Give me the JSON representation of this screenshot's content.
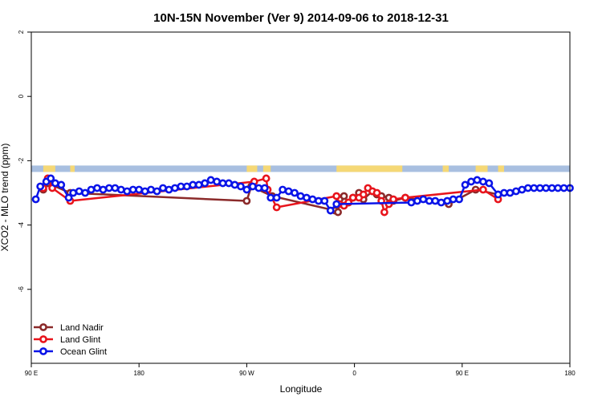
{
  "chart_data": {
    "type": "line",
    "title": "10N-15N November (Ver 9)   2014-09-06 to 2018-12-31",
    "xlabel": "Longitude",
    "ylabel": "XCO2 - MLO trend (ppm)",
    "xlim": [
      0,
      360
    ],
    "ylim": [
      -8.3,
      2.0
    ],
    "yticks": [
      {
        "value": 2,
        "label": "2"
      },
      {
        "value": 0,
        "label": "0"
      },
      {
        "value": -2,
        "label": "-2"
      },
      {
        "value": -4,
        "label": "-4"
      },
      {
        "value": -6,
        "label": "-6"
      }
    ],
    "xticks": [
      {
        "value": 0,
        "label": "90 E"
      },
      {
        "value": 72,
        "label": "180"
      },
      {
        "value": 144,
        "label": "90 W"
      },
      {
        "value": 216,
        "label": "0"
      },
      {
        "value": 288,
        "label": "90 E"
      },
      {
        "value": 360,
        "label": "180"
      }
    ],
    "legend_position": "bottom-left",
    "map_strip": {
      "y_range": [
        -2.35,
        -2.15
      ],
      "ocean_color": "#a8bfe0",
      "land_color": "#f5d876",
      "land_spans": [
        [
          8,
          16
        ],
        [
          26,
          29
        ],
        [
          144,
          151
        ],
        [
          155,
          160
        ],
        [
          204,
          248
        ],
        [
          275,
          279
        ],
        [
          297,
          305
        ],
        [
          312,
          316
        ]
      ]
    },
    "series": [
      {
        "name": "Land Nadir",
        "color": "#8b2a2a",
        "points": [
          [
            8,
            -2.9
          ],
          [
            11,
            -2.7
          ],
          [
            26,
            -3.0
          ],
          [
            144,
            -3.25
          ],
          [
            147,
            -2.8
          ],
          [
            161,
            -3.1
          ],
          [
            203,
            -3.55
          ],
          [
            205,
            -3.6
          ],
          [
            206,
            -3.2
          ],
          [
            209,
            -3.1
          ],
          [
            212,
            -3.3
          ],
          [
            215,
            -3.15
          ],
          [
            219,
            -3.0
          ],
          [
            222,
            -3.2
          ],
          [
            228,
            -2.95
          ],
          [
            231,
            -3.05
          ],
          [
            234,
            -3.1
          ],
          [
            239,
            -3.15
          ],
          [
            242,
            -3.25
          ],
          [
            250,
            -3.15
          ],
          [
            279,
            -3.35
          ],
          [
            297,
            -2.9
          ],
          [
            312,
            -3.05
          ]
        ]
      },
      {
        "name": "Land Glint",
        "color": "#e8141c",
        "points": [
          [
            8,
            -2.85
          ],
          [
            11,
            -2.55
          ],
          [
            14,
            -2.85
          ],
          [
            26,
            -3.25
          ],
          [
            149,
            -2.65
          ],
          [
            157,
            -2.55
          ],
          [
            158,
            -2.9
          ],
          [
            164,
            -3.45
          ],
          [
            204,
            -3.1
          ],
          [
            206,
            -3.35
          ],
          [
            209,
            -3.4
          ],
          [
            212,
            -3.3
          ],
          [
            215,
            -3.15
          ],
          [
            219,
            -3.15
          ],
          [
            222,
            -3.05
          ],
          [
            225,
            -2.85
          ],
          [
            228,
            -2.95
          ],
          [
            231,
            -3.0
          ],
          [
            234,
            -3.25
          ],
          [
            236,
            -3.6
          ],
          [
            239,
            -3.35
          ],
          [
            242,
            -3.2
          ],
          [
            250,
            -3.15
          ],
          [
            302,
            -2.9
          ],
          [
            312,
            -3.2
          ]
        ]
      },
      {
        "name": "Ocean Glint",
        "color": "#0a14e8",
        "points": [
          [
            3,
            -3.2
          ],
          [
            6,
            -2.8
          ],
          [
            10,
            -2.65
          ],
          [
            13,
            -2.55
          ],
          [
            16,
            -2.7
          ],
          [
            20,
            -2.75
          ],
          [
            25,
            -3.15
          ],
          [
            28,
            -3.0
          ],
          [
            32,
            -2.95
          ],
          [
            36,
            -3.0
          ],
          [
            40,
            -2.9
          ],
          [
            44,
            -2.85
          ],
          [
            48,
            -2.9
          ],
          [
            52,
            -2.85
          ],
          [
            56,
            -2.85
          ],
          [
            60,
            -2.9
          ],
          [
            64,
            -2.95
          ],
          [
            68,
            -2.9
          ],
          [
            72,
            -2.9
          ],
          [
            76,
            -2.95
          ],
          [
            80,
            -2.9
          ],
          [
            84,
            -2.95
          ],
          [
            88,
            -2.85
          ],
          [
            92,
            -2.9
          ],
          [
            96,
            -2.85
          ],
          [
            100,
            -2.8
          ],
          [
            104,
            -2.8
          ],
          [
            108,
            -2.75
          ],
          [
            112,
            -2.75
          ],
          [
            116,
            -2.7
          ],
          [
            120,
            -2.6
          ],
          [
            124,
            -2.65
          ],
          [
            128,
            -2.7
          ],
          [
            132,
            -2.7
          ],
          [
            136,
            -2.75
          ],
          [
            140,
            -2.8
          ],
          [
            144,
            -2.9
          ],
          [
            148,
            -2.8
          ],
          [
            152,
            -2.85
          ],
          [
            156,
            -2.85
          ],
          [
            160,
            -3.15
          ],
          [
            164,
            -3.15
          ],
          [
            168,
            -2.9
          ],
          [
            172,
            -2.95
          ],
          [
            176,
            -3.0
          ],
          [
            180,
            -3.1
          ],
          [
            184,
            -3.15
          ],
          [
            188,
            -3.2
          ],
          [
            192,
            -3.25
          ],
          [
            196,
            -3.25
          ],
          [
            200,
            -3.55
          ],
          [
            204,
            -3.35
          ],
          [
            254,
            -3.3
          ],
          [
            258,
            -3.25
          ],
          [
            262,
            -3.2
          ],
          [
            266,
            -3.25
          ],
          [
            270,
            -3.25
          ],
          [
            274,
            -3.3
          ],
          [
            278,
            -3.25
          ],
          [
            282,
            -3.2
          ],
          [
            286,
            -3.2
          ],
          [
            290,
            -2.75
          ],
          [
            294,
            -2.65
          ],
          [
            298,
            -2.6
          ],
          [
            302,
            -2.65
          ],
          [
            306,
            -2.7
          ],
          [
            312,
            -3.05
          ],
          [
            316,
            -3.0
          ],
          [
            320,
            -3.0
          ],
          [
            324,
            -2.95
          ],
          [
            328,
            -2.9
          ],
          [
            332,
            -2.85
          ],
          [
            336,
            -2.85
          ],
          [
            340,
            -2.85
          ],
          [
            344,
            -2.85
          ],
          [
            348,
            -2.85
          ],
          [
            352,
            -2.85
          ],
          [
            356,
            -2.85
          ],
          [
            360,
            -2.85
          ]
        ]
      }
    ]
  }
}
